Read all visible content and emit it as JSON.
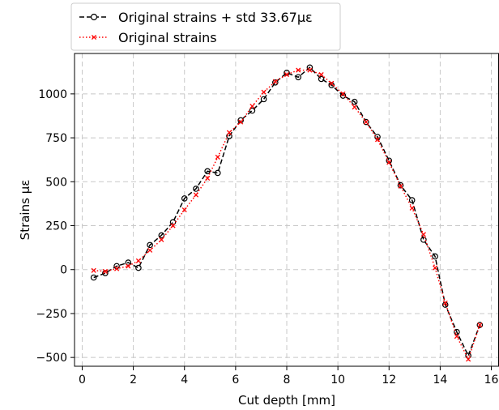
{
  "chart_data": {
    "type": "line",
    "title": "",
    "xlabel": "Cut depth [mm]",
    "ylabel": "Strains µε",
    "xlim": [
      -0.3,
      16.3
    ],
    "ylim": [
      -550,
      1230
    ],
    "xticks": [
      0,
      2,
      4,
      6,
      8,
      10,
      12,
      14,
      16
    ],
    "yticks": [
      -500,
      -250,
      0,
      250,
      500,
      750,
      1000
    ],
    "grid": true,
    "grid_style": "dashed",
    "legend_position": "top-left, outside above plot",
    "series": [
      {
        "name": "Original strains + std 33.67µε",
        "color": "#000000",
        "line_style": "dashed",
        "marker": "open-circle",
        "x": [
          0.45,
          0.9,
          1.35,
          1.8,
          2.2,
          2.65,
          3.1,
          3.55,
          4.0,
          4.45,
          4.9,
          5.3,
          5.75,
          6.2,
          6.65,
          7.1,
          7.55,
          8.0,
          8.45,
          8.9,
          9.35,
          9.75,
          10.2,
          10.65,
          11.1,
          11.55,
          12.0,
          12.45,
          12.9,
          13.35,
          13.8,
          14.2,
          14.65,
          15.1,
          15.55
        ],
        "y": [
          -45,
          -20,
          20,
          40,
          10,
          140,
          195,
          270,
          405,
          460,
          560,
          550,
          760,
          850,
          905,
          970,
          1065,
          1120,
          1095,
          1150,
          1085,
          1050,
          990,
          955,
          840,
          755,
          620,
          480,
          395,
          170,
          75,
          -200,
          -355,
          -490,
          -315
        ]
      },
      {
        "name": "Original strains",
        "color": "#ff0000",
        "line_style": "dotted",
        "marker": "x",
        "x": [
          0.45,
          0.9,
          1.35,
          1.8,
          2.2,
          2.65,
          3.1,
          3.55,
          4.0,
          4.45,
          4.9,
          5.3,
          5.75,
          6.2,
          6.65,
          7.1,
          7.55,
          8.0,
          8.45,
          8.9,
          9.35,
          9.75,
          10.2,
          10.65,
          11.1,
          11.55,
          12.0,
          12.45,
          12.9,
          13.35,
          13.8,
          14.2,
          14.65,
          15.1,
          15.55
        ],
        "y": [
          -5,
          -10,
          5,
          20,
          50,
          110,
          170,
          250,
          340,
          425,
          520,
          640,
          780,
          840,
          930,
          1010,
          1070,
          1110,
          1135,
          1135,
          1110,
          1060,
          1000,
          925,
          840,
          740,
          610,
          475,
          350,
          200,
          10,
          -190,
          -380,
          -510,
          -315
        ]
      }
    ]
  }
}
